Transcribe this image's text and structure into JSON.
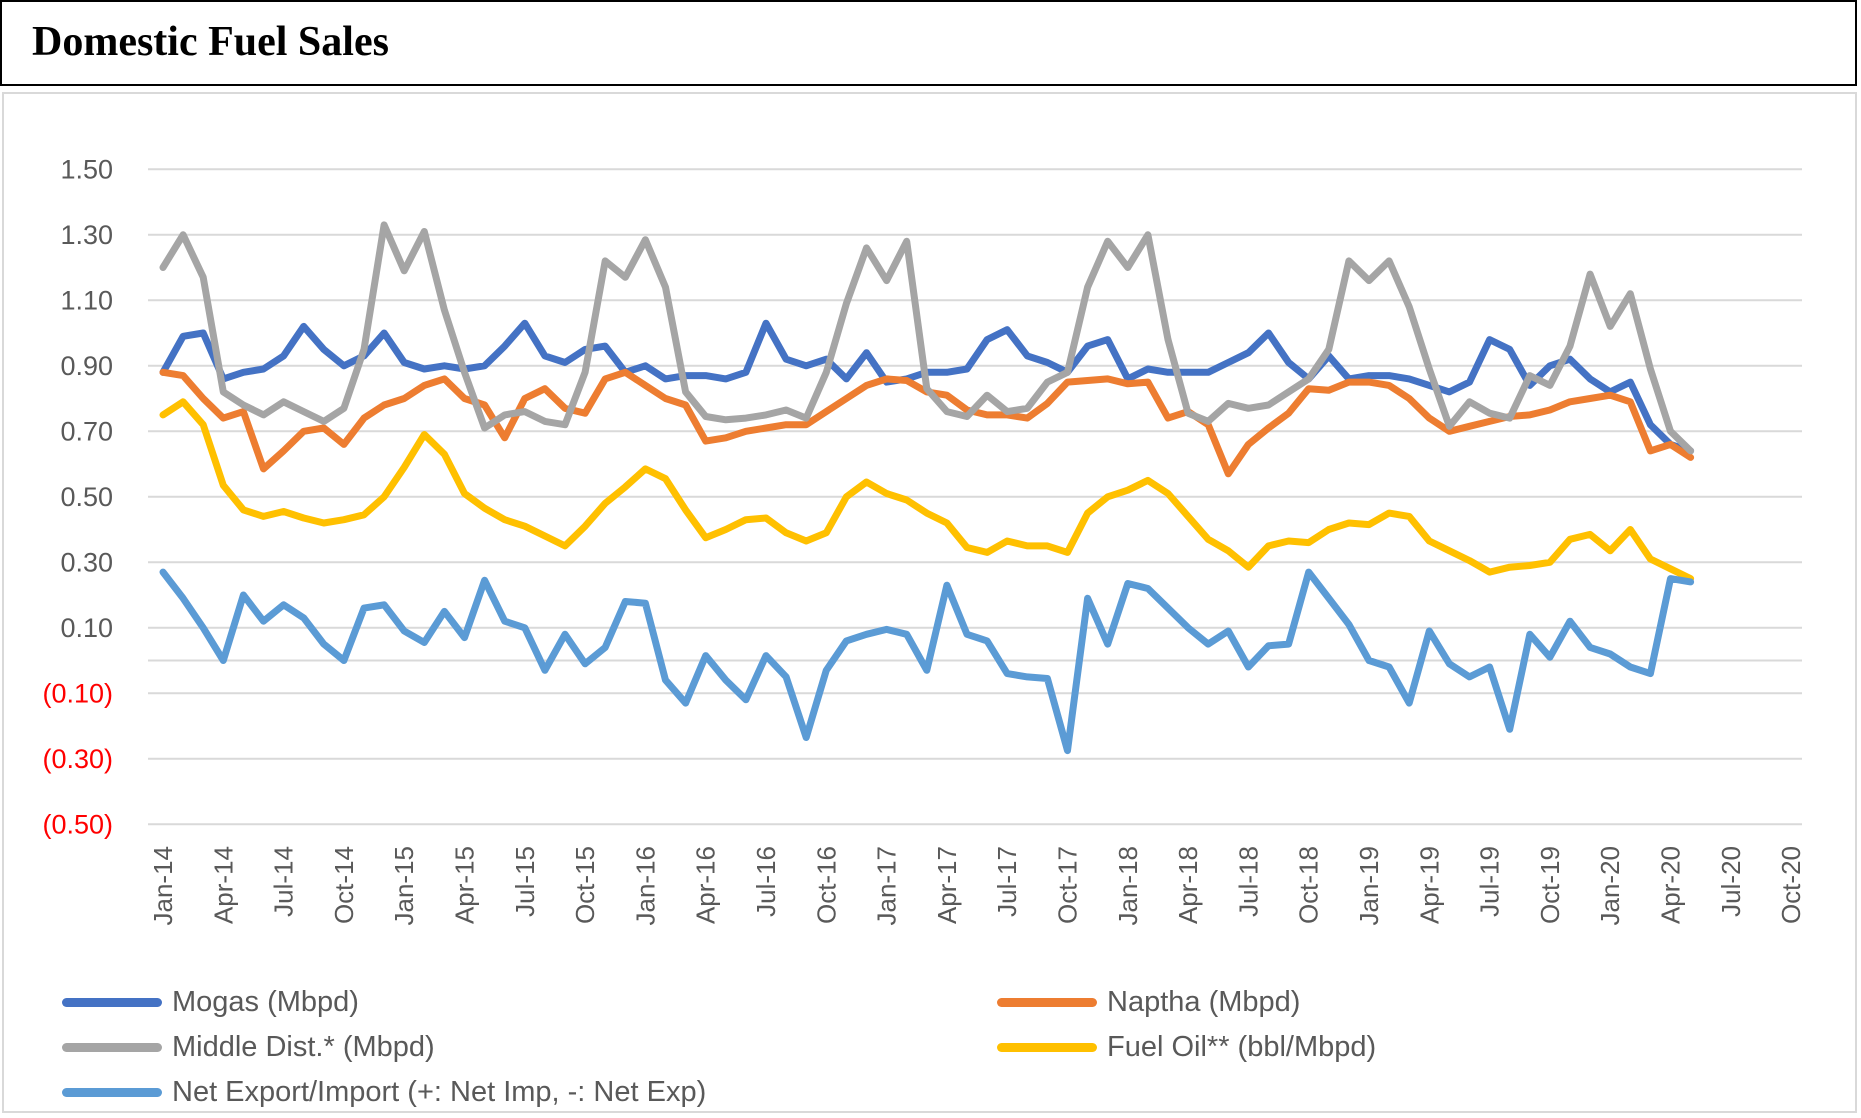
{
  "title": "Domestic Fuel Sales",
  "colors": {
    "grid": "#D9D9D9",
    "axis_text": "#595959",
    "negative_axis_text": "#FF0000",
    "frame_border": "#D9D9D9",
    "title_border": "#000000"
  },
  "chart_data": {
    "type": "line",
    "title": "Domestic Fuel Sales",
    "xlabel": "",
    "ylabel": "",
    "grid": true,
    "legend_position": "bottom",
    "ylim": [
      -0.5,
      1.5
    ],
    "y_tick_step": 0.2,
    "x_monthly_start": "Jan-14",
    "x_monthly_end": "May-20",
    "x_tick_labels": [
      "Jan-14",
      "Apr-14",
      "Jul-14",
      "Oct-14",
      "Jan-15",
      "Apr-15",
      "Jul-15",
      "Oct-15",
      "Jan-16",
      "Apr-16",
      "Jul-16",
      "Oct-16",
      "Jan-17",
      "Apr-17",
      "Jul-17",
      "Oct-17",
      "Jan-18",
      "Apr-18",
      "Jul-18",
      "Oct-18",
      "Jan-19",
      "Apr-19",
      "Jul-19",
      "Oct-19",
      "Jan-20",
      "Apr-20",
      "Jul-20",
      "Oct-20"
    ],
    "y_ticks": [
      {
        "label": "1.50",
        "value": 1.5
      },
      {
        "label": "1.30",
        "value": 1.3
      },
      {
        "label": "1.10",
        "value": 1.1
      },
      {
        "label": "0.90",
        "value": 0.9
      },
      {
        "label": "0.70",
        "value": 0.7
      },
      {
        "label": "0.50",
        "value": 0.5
      },
      {
        "label": "0.30",
        "value": 0.3
      },
      {
        "label": "0.10",
        "value": 0.1
      },
      {
        "label": "(0.10)",
        "value": -0.1
      },
      {
        "label": "(0.30)",
        "value": -0.3
      },
      {
        "label": "(0.50)",
        "value": -0.5
      }
    ],
    "series": [
      {
        "name": "Mogas (Mbpd)",
        "color": "#4472C4",
        "values": [
          0.88,
          0.99,
          1.0,
          0.86,
          0.88,
          0.89,
          0.93,
          1.02,
          0.95,
          0.9,
          0.93,
          1.0,
          0.91,
          0.89,
          0.9,
          0.89,
          0.9,
          0.96,
          1.03,
          0.93,
          0.91,
          0.95,
          0.96,
          0.88,
          0.9,
          0.86,
          0.87,
          0.87,
          0.86,
          0.88,
          1.03,
          0.92,
          0.9,
          0.92,
          0.86,
          0.94,
          0.85,
          0.86,
          0.88,
          0.88,
          0.89,
          0.98,
          1.01,
          0.93,
          0.91,
          0.88,
          0.96,
          0.98,
          0.86,
          0.89,
          0.88,
          0.88,
          0.88,
          0.91,
          0.94,
          1.0,
          0.91,
          0.86,
          0.93,
          0.86,
          0.87,
          0.87,
          0.86,
          0.84,
          0.82,
          0.85,
          0.98,
          0.95,
          0.84,
          0.9,
          0.92,
          0.86,
          0.82,
          0.85,
          0.72,
          0.66,
          0.64
        ]
      },
      {
        "name": "Naptha (Mbpd)",
        "color": "#ED7D31",
        "values": [
          0.88,
          0.87,
          0.8,
          0.74,
          0.76,
          0.585,
          0.64,
          0.7,
          0.71,
          0.66,
          0.74,
          0.78,
          0.8,
          0.84,
          0.86,
          0.8,
          0.78,
          0.68,
          0.8,
          0.83,
          0.77,
          0.755,
          0.86,
          0.88,
          0.84,
          0.8,
          0.78,
          0.67,
          0.68,
          0.7,
          0.71,
          0.72,
          0.72,
          0.76,
          0.8,
          0.84,
          0.86,
          0.855,
          0.82,
          0.81,
          0.765,
          0.75,
          0.75,
          0.74,
          0.785,
          0.85,
          0.855,
          0.86,
          0.845,
          0.85,
          0.74,
          0.76,
          0.72,
          0.57,
          0.66,
          0.71,
          0.755,
          0.83,
          0.825,
          0.85,
          0.85,
          0.84,
          0.8,
          0.74,
          0.7,
          0.715,
          0.73,
          0.745,
          0.75,
          0.765,
          0.79,
          0.8,
          0.81,
          0.79,
          0.64,
          0.66,
          0.62
        ]
      },
      {
        "name": "Middle Dist.* (Mbpd)",
        "color": "#A5A5A5",
        "values": [
          1.2,
          1.3,
          1.17,
          0.82,
          0.78,
          0.75,
          0.79,
          0.76,
          0.73,
          0.77,
          0.95,
          1.33,
          1.19,
          1.31,
          1.07,
          0.88,
          0.71,
          0.75,
          0.76,
          0.73,
          0.72,
          0.88,
          1.22,
          1.17,
          1.285,
          1.14,
          0.82,
          0.745,
          0.735,
          0.74,
          0.75,
          0.765,
          0.74,
          0.88,
          1.09,
          1.26,
          1.16,
          1.28,
          0.83,
          0.76,
          0.745,
          0.81,
          0.76,
          0.77,
          0.85,
          0.88,
          1.14,
          1.28,
          1.2,
          1.3,
          0.98,
          0.755,
          0.73,
          0.785,
          0.77,
          0.78,
          0.82,
          0.86,
          0.95,
          1.22,
          1.16,
          1.22,
          1.08,
          0.89,
          0.715,
          0.79,
          0.755,
          0.74,
          0.87,
          0.84,
          0.96,
          1.18,
          1.02,
          1.12,
          0.89,
          0.7,
          0.64
        ]
      },
      {
        "name": "Fuel Oil** (bbl/Mbpd)",
        "color": "#FFC000",
        "values": [
          0.75,
          0.79,
          0.72,
          0.535,
          0.46,
          0.44,
          0.455,
          0.435,
          0.42,
          0.43,
          0.445,
          0.5,
          0.59,
          0.69,
          0.63,
          0.51,
          0.465,
          0.43,
          0.41,
          0.38,
          0.35,
          0.41,
          0.48,
          0.53,
          0.585,
          0.555,
          0.46,
          0.375,
          0.4,
          0.43,
          0.435,
          0.39,
          0.365,
          0.39,
          0.5,
          0.545,
          0.51,
          0.49,
          0.45,
          0.42,
          0.345,
          0.33,
          0.365,
          0.35,
          0.35,
          0.33,
          0.45,
          0.5,
          0.52,
          0.55,
          0.51,
          0.44,
          0.37,
          0.335,
          0.285,
          0.35,
          0.365,
          0.36,
          0.4,
          0.42,
          0.415,
          0.45,
          0.44,
          0.365,
          0.335,
          0.305,
          0.27,
          0.285,
          0.29,
          0.3,
          0.37,
          0.385,
          0.335,
          0.4,
          0.31,
          0.28,
          0.25
        ]
      },
      {
        "name": "Net Export/Import (+: Net Imp, -: Net Exp)",
        "color": "#5B9BD5",
        "values": [
          0.27,
          0.19,
          0.1,
          0.0,
          0.2,
          0.12,
          0.17,
          0.13,
          0.05,
          0.0,
          0.16,
          0.17,
          0.09,
          0.055,
          0.15,
          0.07,
          0.245,
          0.12,
          0.1,
          -0.03,
          0.08,
          -0.01,
          0.04,
          0.18,
          0.175,
          -0.06,
          -0.13,
          0.015,
          -0.06,
          -0.12,
          0.015,
          -0.05,
          -0.235,
          -0.03,
          0.06,
          0.08,
          0.095,
          0.08,
          -0.03,
          0.23,
          0.08,
          0.06,
          -0.04,
          -0.05,
          -0.055,
          -0.275,
          0.19,
          0.05,
          0.235,
          0.22,
          0.16,
          0.1,
          0.05,
          0.09,
          -0.02,
          0.045,
          0.05,
          0.27,
          0.19,
          0.11,
          0.0,
          -0.02,
          -0.13,
          0.09,
          -0.01,
          -0.05,
          -0.02,
          -0.21,
          0.08,
          0.01,
          0.12,
          0.04,
          0.02,
          -0.02,
          -0.04,
          0.25,
          0.24
        ]
      }
    ]
  },
  "legend": {
    "rows": 3,
    "columns": 2
  }
}
